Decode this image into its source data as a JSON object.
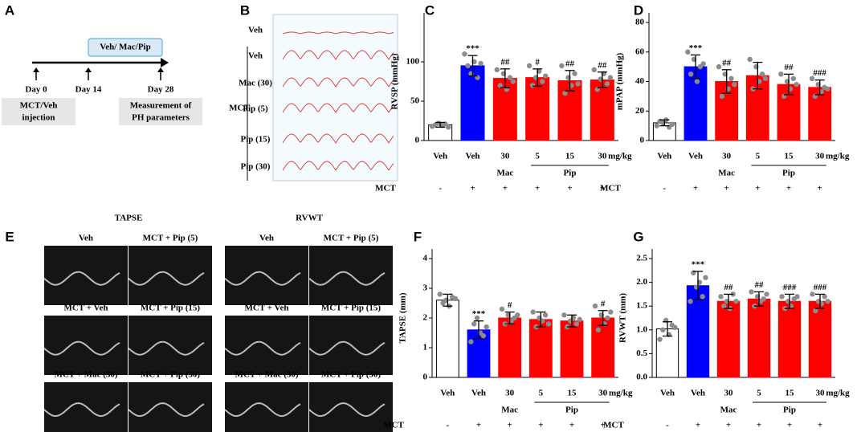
{
  "panel_a": {
    "label": "A",
    "treatment": "Veh/ Mac/Pip",
    "days": [
      "Day 0",
      "Day 14",
      "Day 28"
    ],
    "boxes": [
      [
        "MCT/Veh",
        "injection"
      ],
      [
        "Measurement of",
        "PH parameters"
      ]
    ]
  },
  "panel_b": {
    "label": "B",
    "group": "MCT",
    "rows": [
      "Veh",
      "Veh",
      "Mac (30)",
      "Pip (5)",
      "Pip (15)",
      "Pip (30)"
    ]
  },
  "panel_e": {
    "label": "E",
    "sections": [
      {
        "title": "TAPSE",
        "cells": [
          "Veh",
          "MCT + Pip (5)",
          "MCT + Veh",
          "MCT + Pip (15)",
          "MCT + Mac (30)",
          "MCT + Pip (30)"
        ]
      },
      {
        "title": "RVWT",
        "cells": [
          "Veh",
          "MCT + Pip (5)",
          "MCT + Veh",
          "MCT + Pip (15)",
          "MCT + Mac (30)",
          "MCT + Pip (30)"
        ]
      }
    ]
  },
  "chart_data": [
    {
      "type": "bar",
      "label": "C",
      "ylabel": "RVSP (mmHg)",
      "ylim": [
        0,
        150
      ],
      "yticks": [
        0,
        50,
        100
      ],
      "categories": [
        "Veh",
        "Veh",
        "30",
        "5",
        "15",
        "30"
      ],
      "unit": "mg/kg",
      "groups": [
        {
          "name": "Mac",
          "members": [
            2
          ]
        },
        {
          "name": "Pip",
          "members": [
            3,
            4,
            5
          ]
        }
      ],
      "condition": "MCT",
      "condition_values": [
        "-",
        "+",
        "+",
        "+",
        "+",
        "+"
      ],
      "colors": [
        "#ffffff",
        "#0000ff",
        "#ff0000",
        "#ff0000",
        "#ff0000",
        "#ff0000"
      ],
      "values": [
        20,
        95,
        79,
        80,
        76,
        77
      ],
      "errors": [
        3,
        13,
        12,
        11,
        13,
        10
      ],
      "annotations": [
        null,
        "***",
        "##",
        "#",
        "##",
        "##"
      ],
      "points": [
        [
          18,
          20,
          22,
          19,
          21,
          17
        ],
        [
          110,
          95,
          85,
          100,
          80,
          98
        ],
        [
          90,
          70,
          85,
          65,
          80,
          75
        ],
        [
          95,
          70,
          80,
          88,
          75,
          82
        ],
        [
          95,
          60,
          80,
          70,
          85,
          72
        ],
        [
          90,
          65,
          78,
          85,
          72,
          80
        ]
      ]
    },
    {
      "type": "bar",
      "label": "D",
      "ylabel": "mPAP (mmHg)",
      "ylim": [
        0,
        80
      ],
      "yticks": [
        0,
        20,
        40,
        60,
        80
      ],
      "categories": [
        "Veh",
        "Veh",
        "30",
        "5",
        "15",
        "30"
      ],
      "unit": "mg/kg",
      "groups": [
        {
          "name": "Mac",
          "members": [
            2
          ]
        },
        {
          "name": "Pip",
          "members": [
            3,
            4,
            5
          ]
        }
      ],
      "condition": "MCT",
      "condition_values": [
        "-",
        "+",
        "+",
        "+",
        "+",
        "+"
      ],
      "colors": [
        "#ffffff",
        "#0000ff",
        "#ff0000",
        "#ff0000",
        "#ff0000",
        "#ff0000"
      ],
      "values": [
        12,
        50,
        40,
        44,
        38,
        36
      ],
      "errors": [
        2,
        8,
        8,
        9,
        7,
        5
      ],
      "annotations": [
        null,
        "***",
        "##",
        null,
        "##",
        "###"
      ],
      "points": [
        [
          10,
          13,
          12,
          14,
          9,
          11
        ],
        [
          60,
          45,
          55,
          40,
          50,
          52
        ],
        [
          50,
          30,
          45,
          35,
          42,
          38
        ],
        [
          55,
          35,
          50,
          40,
          45,
          42
        ],
        [
          45,
          30,
          40,
          35,
          42,
          38
        ],
        [
          42,
          30,
          38,
          33,
          36,
          35
        ]
      ]
    },
    {
      "type": "bar",
      "label": "F",
      "ylabel": "TAPSE (mm)",
      "ylim": [
        0,
        4
      ],
      "yticks": [
        0,
        1,
        2,
        3,
        4
      ],
      "categories": [
        "Veh",
        "Veh",
        "30",
        "5",
        "15",
        "30"
      ],
      "unit": "mg/kg",
      "groups": [
        {
          "name": "Mac",
          "members": [
            2
          ]
        },
        {
          "name": "Pip",
          "members": [
            3,
            4,
            5
          ]
        }
      ],
      "condition": "MCT",
      "condition_values": [
        "-",
        "+",
        "+",
        "+",
        "+",
        "+"
      ],
      "colors": [
        "#ffffff",
        "#0000ff",
        "#ff0000",
        "#ff0000",
        "#ff0000",
        "#ff0000"
      ],
      "values": [
        2.6,
        1.6,
        2.0,
        1.95,
        1.9,
        2.0
      ],
      "errors": [
        0.2,
        0.3,
        0.2,
        0.25,
        0.2,
        0.25
      ],
      "annotations": [
        null,
        "***",
        "#",
        null,
        null,
        "#"
      ],
      "points": [
        [
          2.8,
          2.5,
          2.6,
          2.4,
          2.7,
          2.65
        ],
        [
          1.2,
          1.8,
          2.0,
          1.5,
          1.4,
          1.7
        ],
        [
          2.3,
          1.8,
          2.1,
          1.9,
          2.0,
          2.1
        ],
        [
          2.2,
          1.7,
          2.0,
          1.9,
          2.1,
          1.8
        ],
        [
          2.1,
          1.7,
          1.9,
          2.0,
          1.8,
          1.95
        ],
        [
          2.4,
          1.6,
          2.1,
          1.8,
          2.0,
          2.2
        ]
      ]
    },
    {
      "type": "bar",
      "label": "G",
      "ylabel": "RVWT (mm)",
      "ylim": [
        0,
        2.5
      ],
      "yticks": [
        {
          "value": 0,
          "label": "0.0"
        },
        0.5,
        {
          "value": 1,
          "label": "1.0"
        },
        1.5,
        {
          "value": 2,
          "label": "2.0"
        },
        2.5
      ],
      "categories": [
        "Veh",
        "Veh",
        "30",
        "5",
        "15",
        "30"
      ],
      "unit": "mg/kg",
      "groups": [
        {
          "name": "Mac",
          "members": [
            2
          ]
        },
        {
          "name": "Pip",
          "members": [
            3,
            4,
            5
          ]
        }
      ],
      "condition": "MCT",
      "condition_values": [
        "-",
        "+",
        "+",
        "+",
        "+",
        "+"
      ],
      "colors": [
        "#ffffff",
        "#0000ff",
        "#ff0000",
        "#ff0000",
        "#ff0000",
        "#ff0000"
      ],
      "values": [
        1.02,
        1.93,
        1.6,
        1.65,
        1.6,
        1.6
      ],
      "errors": [
        0.15,
        0.3,
        0.15,
        0.15,
        0.15,
        0.15
      ],
      "annotations": [
        null,
        "***",
        "##",
        "##",
        "###",
        "###"
      ],
      "points": [
        [
          0.8,
          1.0,
          1.2,
          0.9,
          1.1,
          1.05
        ],
        [
          1.6,
          2.2,
          1.9,
          2.0,
          1.7,
          2.1
        ],
        [
          1.7,
          1.5,
          1.6,
          1.45,
          1.75,
          1.6
        ],
        [
          1.8,
          1.5,
          1.7,
          1.6,
          1.65,
          1.75
        ],
        [
          1.7,
          1.45,
          1.6,
          1.5,
          1.65,
          1.7
        ],
        [
          1.75,
          1.4,
          1.6,
          1.55,
          1.7,
          1.6
        ]
      ]
    }
  ]
}
